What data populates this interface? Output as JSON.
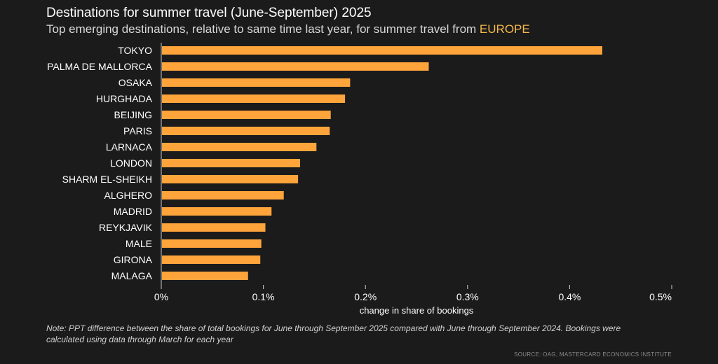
{
  "header": {
    "title": "Destinations for summer travel (June-September) 2025",
    "subtitle_prefix": "Top emerging destinations, relative to same time last year, for summer travel from ",
    "subtitle_highlight": "EUROPE"
  },
  "colors": {
    "background": "#1c1b1b",
    "bar": "#ffa43a",
    "highlight": "#f2b84b",
    "text": "#ffffff",
    "axis": "#cccccc"
  },
  "chart_data": {
    "type": "bar",
    "orientation": "horizontal",
    "categories": [
      "TOKYO",
      "PALMA DE MALLORCA",
      "OSAKA",
      "HURGHADA",
      "BEIJING",
      "PARIS",
      "LARNACA",
      "LONDON",
      "SHARM EL-SHEIKH",
      "ALGHERO",
      "MADRID",
      "REYKJAVIK",
      "MALE",
      "GIRONA",
      "MALAGA"
    ],
    "values": [
      0.432,
      0.262,
      0.185,
      0.18,
      0.166,
      0.165,
      0.152,
      0.136,
      0.134,
      0.12,
      0.108,
      0.102,
      0.098,
      0.097,
      0.085
    ],
    "xlabel": "change in share of bookings",
    "ylabel": "",
    "xlim": [
      0,
      0.5
    ],
    "xticks": [
      0,
      0.1,
      0.2,
      0.3,
      0.4,
      0.5
    ],
    "xtick_labels": [
      "0%",
      "0.1%",
      "0.2%",
      "0.3%",
      "0.4%",
      "0.5%"
    ],
    "grid": false
  },
  "footer": {
    "note": "Note: PPT difference between the share of total bookings for June through September 2025 compared with June through September 2024. Bookings were calculated using data through March for each year",
    "source": "SOURCE: OAG, MASTERCARD ECONOMICS INSTITUTE"
  }
}
